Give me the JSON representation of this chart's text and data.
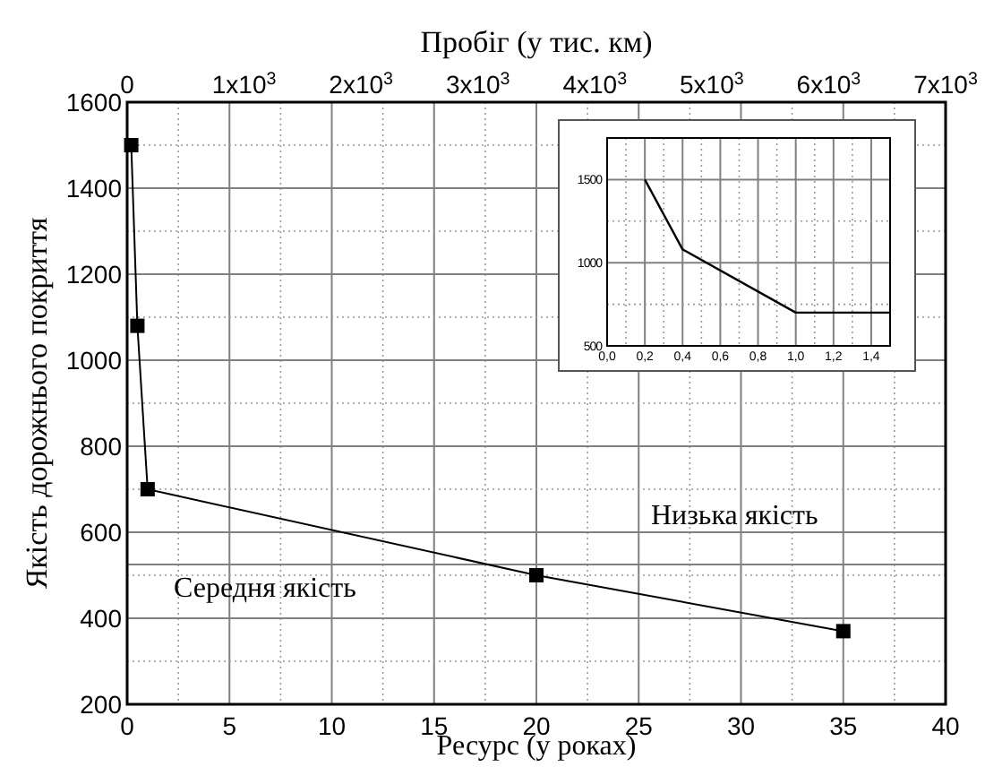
{
  "chart_data": [
    {
      "type": "line",
      "xlabel": "Ресурс (у роках)",
      "ylabel": "Якість дорожнього покриття",
      "x2label": "Пробіг (у тис. км)",
      "x": [
        0.2,
        0.5,
        1,
        20,
        35
      ],
      "series": [
        {
          "color": "#000000",
          "values": [
            1500,
            1080,
            700,
            500,
            370
          ]
        }
      ],
      "xlim": [
        0,
        40
      ],
      "xticks": [
        0,
        5,
        10,
        15,
        20,
        25,
        30,
        35,
        40
      ],
      "ylim": [
        200,
        1600
      ],
      "yticks": [
        200,
        400,
        600,
        800,
        1000,
        1200,
        1400,
        1600
      ],
      "x2lim": [
        0,
        7000
      ],
      "x2ticks": [
        0,
        {
          "value": 1000,
          "label": "1x10$^{3}$"
        },
        {
          "value": 2000,
          "label": "2x10$^{3}$"
        },
        {
          "value": 3000,
          "label": "3x10$^{3}$"
        },
        {
          "value": 4000,
          "label": "4x10$^{3}$"
        },
        {
          "value": 5000,
          "label": "5x10$^{3}$"
        },
        {
          "value": 6000,
          "label": "6x10$^{3}$"
        },
        {
          "value": 7000,
          "label": "7x10$^{3}$"
        }
      ],
      "grid": true,
      "marker": "square",
      "ref_lines": [
        {
          "axis": "y",
          "value": 525
        }
      ],
      "annotations": [
        "Низька якість",
        "Середня якість"
      ]
    },
    {
      "type": "line",
      "x": [
        0.2,
        0.4,
        1.0,
        1.5
      ],
      "series": [
        {
          "color": "#000000",
          "values": [
            1500,
            1080,
            700,
            700
          ]
        }
      ],
      "xlim": [
        0,
        1.5
      ],
      "xticks": [
        {
          "value": 0,
          "label": "0,0"
        },
        {
          "value": 0.2,
          "label": "0,2"
        },
        {
          "value": 0.4,
          "label": "0,4"
        },
        {
          "value": 0.6,
          "label": "0,6"
        },
        {
          "value": 0.8,
          "label": "0,8"
        },
        {
          "value": 1.0,
          "label": "1,0"
        },
        {
          "value": 1.2,
          "label": "1,2"
        },
        {
          "value": 1.4,
          "label": "1,4"
        }
      ],
      "ylim": [
        500,
        1750
      ],
      "yticks": [
        500,
        1000,
        1500
      ],
      "grid": true
    }
  ]
}
